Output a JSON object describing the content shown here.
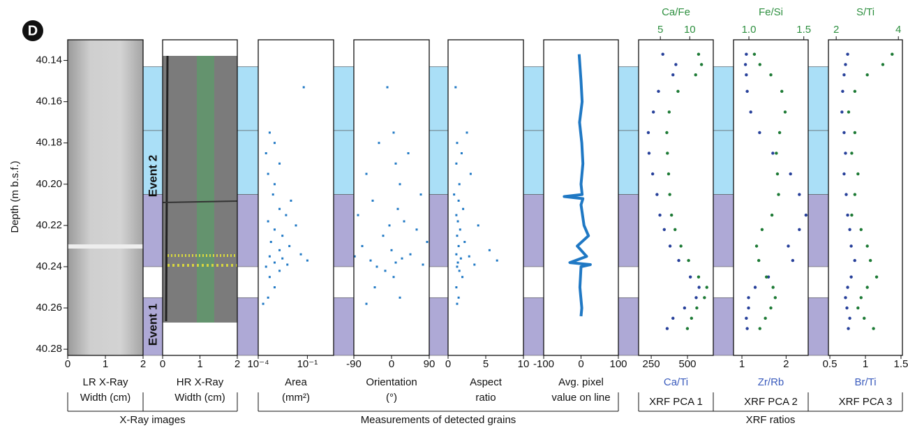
{
  "panel_label": "D",
  "ylabel": "Depth (m b.s.f.)",
  "ylim": [
    40.13,
    40.283
  ],
  "yticks": [
    {
      "value": 40.14,
      "label": "40.14"
    },
    {
      "value": 40.16,
      "label": "40.16"
    },
    {
      "value": 40.18,
      "label": "40.18"
    },
    {
      "value": 40.2,
      "label": "40.20"
    },
    {
      "value": 40.22,
      "label": "40.22"
    },
    {
      "value": 40.24,
      "label": "40.24"
    },
    {
      "value": 40.26,
      "label": "40.26"
    },
    {
      "value": 40.28,
      "label": "40.28"
    }
  ],
  "intervals": [
    {
      "top": 40.143,
      "bottom": 40.174,
      "color": "#aadff7"
    },
    {
      "top": 40.174,
      "bottom": 40.205,
      "color": "#aadff7"
    },
    {
      "top": 40.205,
      "bottom": 40.24,
      "color": "#aea9d6"
    },
    {
      "top": 40.255,
      "bottom": 40.283,
      "color": "#aea9d6"
    }
  ],
  "events": [
    "Event 2",
    "Event 1"
  ],
  "groups": [
    "X-Ray images",
    "Measurements of detected grains",
    "XRF ratios"
  ],
  "chart_data": [
    {
      "type": "image",
      "xlim": [
        0,
        2
      ],
      "xticks": [
        0,
        1,
        2
      ],
      "xlabel": [
        "LR X-Ray",
        "Width (cm)"
      ]
    },
    {
      "type": "image",
      "xlim": [
        0,
        2
      ],
      "xticks": [
        0,
        1,
        2
      ],
      "xlabel": [
        "HR X-Ray",
        "Width (cm)"
      ]
    },
    {
      "type": "scatter",
      "log_x": true,
      "color": "#1f78c4",
      "xlim": [
        0.0001,
        4
      ],
      "xticks": [
        {
          "value": 0.0001,
          "label": "10⁻⁴"
        },
        {
          "value": 0.1,
          "label": "10⁻¹"
        }
      ],
      "xlabel": [
        "Area",
        "(mm²)"
      ],
      "depth": [
        40.153,
        40.175,
        40.18,
        40.185,
        40.19,
        40.195,
        40.2,
        40.205,
        40.208,
        40.212,
        40.215,
        40.218,
        40.22,
        40.222,
        40.225,
        40.228,
        40.23,
        40.232,
        40.234,
        40.235,
        40.236,
        40.237,
        40.238,
        40.239,
        40.24,
        40.242,
        40.245,
        40.25,
        40.255,
        40.258
      ],
      "values": [
        0.06,
        0.0005,
        0.001,
        0.0003,
        0.002,
        0.0004,
        0.001,
        0.0008,
        0.01,
        0.002,
        0.005,
        0.0004,
        0.02,
        0.001,
        0.003,
        0.0006,
        0.008,
        0.002,
        0.04,
        0.0005,
        0.003,
        0.1,
        0.001,
        0.006,
        0.0003,
        0.002,
        0.0005,
        0.001,
        0.0004,
        0.0002
      ]
    },
    {
      "type": "scatter",
      "color": "#1f78c4",
      "xlim": [
        -90,
        90
      ],
      "xticks": [
        -90,
        0,
        90
      ],
      "xlabel": [
        "Orientation",
        "(°)"
      ],
      "depth": [
        40.153,
        40.175,
        40.18,
        40.185,
        40.19,
        40.195,
        40.2,
        40.205,
        40.208,
        40.212,
        40.215,
        40.218,
        40.22,
        40.222,
        40.225,
        40.228,
        40.23,
        40.232,
        40.234,
        40.235,
        40.236,
        40.237,
        40.238,
        40.239,
        40.24,
        40.242,
        40.245,
        40.25,
        40.255,
        40.258
      ],
      "values": [
        -10,
        5,
        -30,
        40,
        10,
        -60,
        20,
        70,
        -45,
        15,
        -80,
        30,
        -5,
        60,
        -20,
        85,
        -70,
        0,
        45,
        -88,
        25,
        -50,
        10,
        75,
        -35,
        -15,
        5,
        -40,
        20,
        -60
      ]
    },
    {
      "type": "scatter",
      "color": "#1f78c4",
      "xlim": [
        0,
        10
      ],
      "xticks": [
        0,
        5,
        10
      ],
      "xlabel": [
        "Aspect",
        "ratio"
      ],
      "depth": [
        40.153,
        40.175,
        40.18,
        40.185,
        40.19,
        40.195,
        40.2,
        40.205,
        40.208,
        40.212,
        40.215,
        40.218,
        40.22,
        40.222,
        40.225,
        40.228,
        40.23,
        40.232,
        40.234,
        40.235,
        40.236,
        40.237,
        40.238,
        40.239,
        40.24,
        40.242,
        40.245,
        40.25,
        40.255,
        40.258
      ],
      "values": [
        1,
        2.5,
        1.2,
        1.8,
        1.1,
        3,
        1.5,
        0.8,
        1.4,
        2,
        1.1,
        1.3,
        4,
        1.6,
        1.2,
        2.2,
        1.4,
        5.5,
        1.1,
        2.8,
        1.7,
        6.5,
        1.3,
        3.5,
        1.2,
        1.5,
        1.9,
        1.1,
        1.4,
        1.2
      ]
    },
    {
      "type": "line",
      "color": "#1f78c4",
      "xlim": [
        -100,
        100
      ],
      "xticks": [
        -100,
        0,
        100
      ],
      "xlabel": [
        "Avg. pixel",
        "value on line"
      ],
      "depth": [
        40.137,
        40.15,
        40.16,
        40.17,
        40.18,
        40.19,
        40.2,
        40.205,
        40.206,
        40.207,
        40.21,
        40.22,
        40.225,
        40.23,
        40.235,
        40.238,
        40.239,
        40.24,
        40.25,
        40.26,
        40.264
      ],
      "values": [
        -5,
        0,
        3,
        -4,
        2,
        5,
        0,
        3,
        -45,
        5,
        0,
        8,
        20,
        -10,
        15,
        -30,
        25,
        0,
        -3,
        2,
        0
      ]
    },
    {
      "type": "xrf",
      "title": "XRF PCA 1",
      "xlim": [
        163,
        678
      ],
      "xticks": [
        250,
        500
      ],
      "x2lim": [
        1.3,
        14
      ],
      "x2ticks": [
        5,
        10
      ],
      "depth": [
        40.137,
        40.142,
        40.147,
        40.155,
        40.165,
        40.175,
        40.185,
        40.195,
        40.205,
        40.215,
        40.222,
        40.23,
        40.237,
        40.245,
        40.25,
        40.255,
        40.26,
        40.265,
        40.27
      ],
      "series": [
        {
          "name": "Ca/Ti",
          "color": "#27409a",
          "label_color": "#3a5bbd",
          "values": [
            330,
            420,
            400,
            300,
            265,
            230,
            235,
            260,
            290,
            310,
            340,
            380,
            440,
            520,
            580,
            560,
            480,
            400,
            360
          ]
        },
        {
          "name": "Ca/Fe",
          "axis": "x2",
          "color": "#1d7a35",
          "label_color": "#2d8f3f",
          "values": [
            11.5,
            12.0,
            11.0,
            8.0,
            6.5,
            6.1,
            6.2,
            6.4,
            6.6,
            6.9,
            7.5,
            8.5,
            9.8,
            11.5,
            12.9,
            12.5,
            11.2,
            10.3,
            9.6
          ]
        }
      ]
    },
    {
      "type": "xrf",
      "title": "XRF PCA 2",
      "xlim": [
        0.81,
        2.5
      ],
      "xticks": [
        1,
        2
      ],
      "x2lim": [
        0.86,
        1.54
      ],
      "x2ticks": [
        {
          "value": 1,
          "label": "1.0"
        },
        1.5
      ],
      "depth": [
        40.137,
        40.142,
        40.147,
        40.155,
        40.165,
        40.175,
        40.185,
        40.195,
        40.205,
        40.215,
        40.222,
        40.23,
        40.237,
        40.245,
        40.25,
        40.255,
        40.26,
        40.265,
        40.27
      ],
      "series": [
        {
          "name": "Zr/Rb",
          "color": "#27409a",
          "label_color": "#3a5bbd",
          "values": [
            1.1,
            1.08,
            1.1,
            1.12,
            1.2,
            1.4,
            1.7,
            2.1,
            2.3,
            2.45,
            2.3,
            2.05,
            2.15,
            1.6,
            1.3,
            1.15,
            1.15,
            1.1,
            1.12
          ]
        },
        {
          "name": "Fe/Si",
          "axis": "x2",
          "color": "#1d7a35",
          "label_color": "#2d8f3f",
          "values": [
            1.05,
            1.1,
            1.2,
            1.3,
            1.33,
            1.28,
            1.25,
            1.26,
            1.27,
            1.21,
            1.12,
            1.07,
            1.09,
            1.16,
            1.22,
            1.24,
            1.2,
            1.15,
            1.1
          ]
        }
      ]
    },
    {
      "type": "xrf",
      "title": "XRF PCA 3",
      "xlim": [
        0.48,
        1.52
      ],
      "xticks": [
        0.5,
        1,
        1.5
      ],
      "x2lim": [
        1.75,
        4.13
      ],
      "x2ticks": [
        2,
        4
      ],
      "depth": [
        40.137,
        40.142,
        40.147,
        40.155,
        40.165,
        40.175,
        40.185,
        40.195,
        40.205,
        40.215,
        40.222,
        40.23,
        40.237,
        40.245,
        40.25,
        40.255,
        40.26,
        40.265,
        40.27
      ],
      "series": [
        {
          "name": "Br/Ti",
          "color": "#27409a",
          "label_color": "#3a5bbd",
          "values": [
            0.75,
            0.72,
            0.7,
            0.68,
            0.67,
            0.7,
            0.72,
            0.7,
            0.73,
            0.75,
            0.78,
            0.8,
            0.85,
            0.8,
            0.75,
            0.72,
            0.74,
            0.78,
            0.76
          ]
        },
        {
          "name": "S/Ti",
          "axis": "x2",
          "color": "#1d7a35",
          "label_color": "#2d8f3f",
          "values": [
            3.8,
            3.5,
            3.0,
            2.6,
            2.4,
            2.6,
            2.5,
            2.7,
            2.6,
            2.5,
            2.8,
            3.0,
            3.1,
            3.3,
            3.0,
            2.8,
            2.7,
            2.9,
            3.2
          ]
        }
      ]
    }
  ]
}
